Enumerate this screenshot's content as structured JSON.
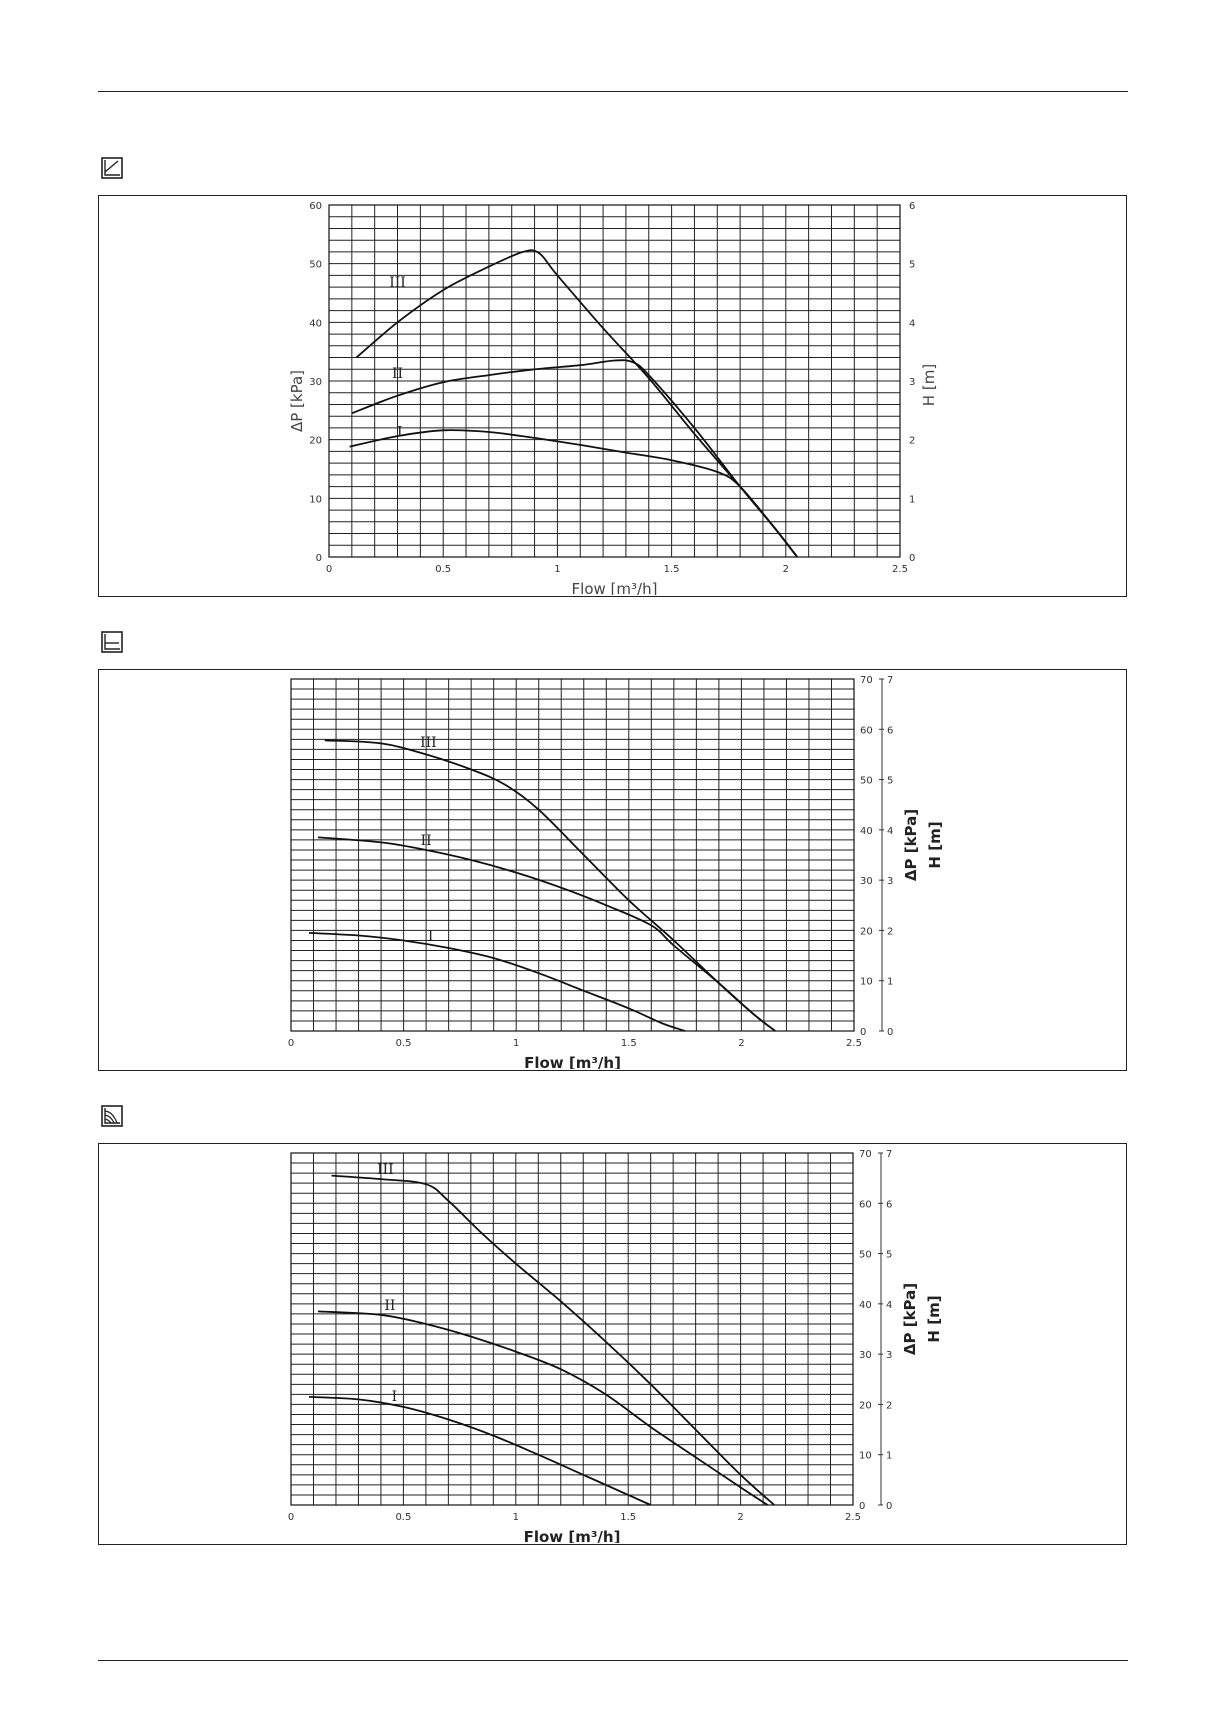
{
  "icons": [
    "proportional-pressure-mode-icon",
    "constant-pressure-mode-icon",
    "speed-curve-mode-icon"
  ],
  "chart_data": [
    {
      "type": "line",
      "title": "",
      "xlabel": "Flow [m³/h]",
      "ylabel": "ΔP [kPa]",
      "y2label": "H [m]",
      "xlim": [
        0,
        2.5
      ],
      "ylim": [
        0,
        60
      ],
      "y2lim": [
        0,
        6
      ],
      "x_ticks": [
        "0",
        "0.5",
        "1",
        "1.5",
        "2",
        "2.5"
      ],
      "y_ticks": [
        "0",
        "10",
        "20",
        "30",
        "40",
        "50",
        "60"
      ],
      "y2_ticks": [
        "0",
        "1",
        "2",
        "3",
        "4",
        "5",
        "6"
      ],
      "grid": true,
      "series": [
        {
          "name": "III",
          "label_at": [
            0.3,
            46
          ],
          "x": [
            0.12,
            0.3,
            0.5,
            0.7,
            0.85,
            0.92,
            1.0,
            1.2,
            1.4,
            1.6,
            1.8,
            1.95,
            2.05
          ],
          "y": [
            34,
            40,
            45.5,
            49.5,
            52,
            51.8,
            48,
            39,
            30.5,
            21,
            12,
            5,
            0
          ]
        },
        {
          "name": "II",
          "label_at": [
            0.3,
            30.5
          ],
          "x": [
            0.1,
            0.3,
            0.5,
            0.7,
            0.9,
            1.1,
            1.25,
            1.33,
            1.4,
            1.6,
            1.8,
            1.95,
            2.05
          ],
          "y": [
            24.5,
            27.5,
            29.8,
            31,
            32,
            32.7,
            33.5,
            33.2,
            31,
            22,
            12,
            5,
            0
          ]
        },
        {
          "name": "I",
          "label_at": [
            0.31,
            20.5
          ],
          "x": [
            0.09,
            0.3,
            0.5,
            0.7,
            0.9,
            1.1,
            1.3,
            1.5,
            1.7,
            1.8,
            1.95,
            2.05
          ],
          "y": [
            18.8,
            20.6,
            21.6,
            21.3,
            20.3,
            19.1,
            17.8,
            16.5,
            14.5,
            12,
            5,
            0
          ]
        }
      ]
    },
    {
      "type": "line",
      "title": "",
      "xlabel": "Flow [m³/h]",
      "ylabel": "ΔP [kPa]",
      "y2label": "H [m]",
      "xlim": [
        0,
        2.5
      ],
      "ylim": [
        0,
        70
      ],
      "y2lim": [
        0,
        7
      ],
      "x_ticks": [
        "0",
        "0.5",
        "1",
        "1.5",
        "2",
        "2.5"
      ],
      "y_ticks": [
        "0",
        "10",
        "20",
        "30",
        "40",
        "50",
        "60",
        "70"
      ],
      "y2_ticks": [
        "0",
        "1",
        "2",
        "3",
        "4",
        "5",
        "6",
        "7"
      ],
      "grid": true,
      "series": [
        {
          "name": "III",
          "label_at": [
            0.61,
            56.5
          ],
          "x": [
            0.15,
            0.4,
            0.6,
            0.8,
            0.95,
            1.1,
            1.3,
            1.5,
            1.7,
            1.9,
            2.05,
            2.15
          ],
          "y": [
            57.8,
            57.2,
            55,
            52,
            49,
            44,
            35,
            26,
            18,
            9.5,
            3.5,
            0
          ]
        },
        {
          "name": "II",
          "label_at": [
            0.6,
            37
          ],
          "x": [
            0.12,
            0.4,
            0.6,
            0.8,
            1.0,
            1.2,
            1.4,
            1.6,
            1.7,
            1.9,
            2.05,
            2.15
          ],
          "y": [
            38.5,
            37.5,
            36,
            34,
            31.5,
            28.5,
            25,
            21,
            17,
            9.5,
            3.5,
            0
          ]
        },
        {
          "name": "I",
          "label_at": [
            0.62,
            18
          ],
          "x": [
            0.08,
            0.3,
            0.5,
            0.7,
            0.9,
            1.1,
            1.3,
            1.5,
            1.65,
            1.75
          ],
          "y": [
            19.5,
            19,
            18,
            16.5,
            14.5,
            11.5,
            8,
            4.5,
            1.5,
            0
          ]
        }
      ]
    },
    {
      "type": "line",
      "title": "",
      "xlabel": "Flow [m³/h]",
      "ylabel": "ΔP [kPa]",
      "y2label": "H [m]",
      "xlim": [
        0,
        2.5
      ],
      "ylim": [
        0,
        70
      ],
      "y2lim": [
        0,
        7
      ],
      "x_ticks": [
        "0",
        "0.5",
        "1",
        "1.5",
        "2",
        "2.5"
      ],
      "y_ticks": [
        "0",
        "10",
        "20",
        "30",
        "40",
        "50",
        "60",
        "70"
      ],
      "y2_ticks": [
        "0",
        "1",
        "2",
        "3",
        "4",
        "5",
        "6",
        "7"
      ],
      "grid": true,
      "series": [
        {
          "name": "III",
          "label_at": [
            0.42,
            65.8
          ],
          "x": [
            0.18,
            0.4,
            0.6,
            0.7,
            0.85,
            1.0,
            1.2,
            1.4,
            1.6,
            1.8,
            2.0,
            2.15
          ],
          "y": [
            65.5,
            64.8,
            63.8,
            60.5,
            54,
            48,
            40.5,
            32.5,
            24,
            15,
            6,
            0
          ]
        },
        {
          "name": "II",
          "label_at": [
            0.44,
            38.8
          ],
          "x": [
            0.12,
            0.4,
            0.6,
            0.8,
            1.0,
            1.2,
            1.4,
            1.6,
            1.8,
            2.0,
            2.12
          ],
          "y": [
            38.5,
            37.8,
            36,
            33.5,
            30.5,
            27,
            22,
            15.5,
            9.5,
            3.5,
            0
          ]
        },
        {
          "name": "I",
          "label_at": [
            0.46,
            20.7
          ],
          "x": [
            0.08,
            0.3,
            0.5,
            0.7,
            0.9,
            1.1,
            1.3,
            1.5,
            1.6
          ],
          "y": [
            21.5,
            21,
            19.5,
            17,
            13.8,
            10,
            6,
            2,
            0
          ]
        }
      ]
    }
  ]
}
